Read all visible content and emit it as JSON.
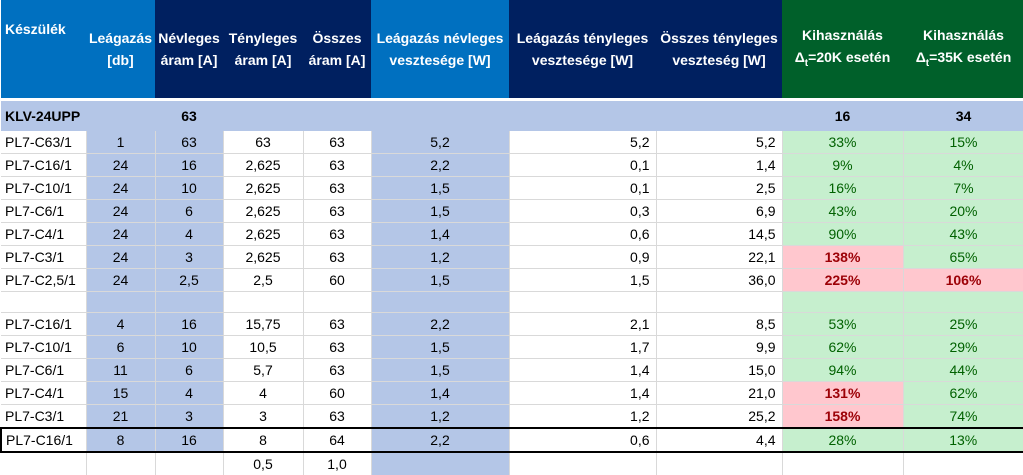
{
  "headers": {
    "device": "Készülék",
    "branches": [
      "Leágazás",
      "[db]"
    ],
    "nominal_current": [
      "Névleges",
      "áram [A]"
    ],
    "actual_current": [
      "Tényleges",
      "áram [A]"
    ],
    "total_current": [
      "Összes",
      "áram [A]"
    ],
    "branch_nominal_loss": [
      "Leágazás névleges",
      "vesztesége [W]"
    ],
    "branch_actual_loss": [
      "Leágazás tényleges",
      "vesztesége [W]"
    ],
    "total_actual_loss": [
      "Összes tényleges",
      "veszteség [W]"
    ],
    "util_20": {
      "title": "Kihasználás",
      "prefix": "Δ",
      "sub": "t",
      "suffix": "=20K esetén"
    },
    "util_35": {
      "title": "Kihasználás",
      "prefix": "Δ",
      "sub": "t",
      "suffix": "=35K esetén"
    }
  },
  "summary": {
    "device": "KLV-24UPP",
    "nominal_current": "63",
    "util_20": "16",
    "util_35": "34"
  },
  "group1": [
    [
      "PL7-C63/1",
      "1",
      "63",
      "63",
      "63",
      "5,2",
      "5,2",
      "5,2",
      "33%",
      "15%"
    ],
    [
      "PL7-C16/1",
      "24",
      "16",
      "2,625",
      "63",
      "2,2",
      "0,1",
      "1,4",
      "9%",
      "4%"
    ],
    [
      "PL7-C10/1",
      "24",
      "10",
      "2,625",
      "63",
      "1,5",
      "0,1",
      "2,5",
      "16%",
      "7%"
    ],
    [
      "PL7-C6/1",
      "24",
      "6",
      "2,625",
      "63",
      "1,5",
      "0,3",
      "6,9",
      "43%",
      "20%"
    ],
    [
      "PL7-C4/1",
      "24",
      "4",
      "2,625",
      "63",
      "1,4",
      "0,6",
      "14,5",
      "90%",
      "43%"
    ],
    [
      "PL7-C3/1",
      "24",
      "3",
      "2,625",
      "63",
      "1,2",
      "0,9",
      "22,1",
      "138%",
      "65%"
    ],
    [
      "PL7-C2,5/1",
      "24",
      "2,5",
      "2,5",
      "60",
      "1,5",
      "1,5",
      "36,0",
      "225%",
      "106%"
    ]
  ],
  "group2": [
    [
      "PL7-C16/1",
      "4",
      "16",
      "15,75",
      "63",
      "2,2",
      "2,1",
      "8,5",
      "53%",
      "25%"
    ],
    [
      "PL7-C10/1",
      "6",
      "10",
      "10,5",
      "63",
      "1,5",
      "1,7",
      "9,9",
      "62%",
      "29%"
    ],
    [
      "PL7-C6/1",
      "11",
      "6",
      "5,7",
      "63",
      "1,5",
      "1,4",
      "15,0",
      "94%",
      "44%"
    ],
    [
      "PL7-C4/1",
      "15",
      "4",
      "4",
      "60",
      "1,4",
      "1,4",
      "21,0",
      "131%",
      "62%"
    ],
    [
      "PL7-C3/1",
      "21",
      "3",
      "3",
      "63",
      "1,2",
      "1,2",
      "25,2",
      "158%",
      "74%"
    ]
  ],
  "boxed_row": [
    "PL7-C16/1",
    "8",
    "16",
    "8",
    "64",
    "2,2",
    "0,6",
    "4,4",
    "28%",
    "13%"
  ],
  "footer": {
    "actual_current": "0,5",
    "total_current": "1,0"
  },
  "colors": {
    "header_blue": "#0070c0",
    "header_dark": "#002060",
    "header_green": "#00602a",
    "band_blue": "#b4c6e7",
    "ok_green": "#c6efce",
    "over_red": "#ffc7ce"
  }
}
